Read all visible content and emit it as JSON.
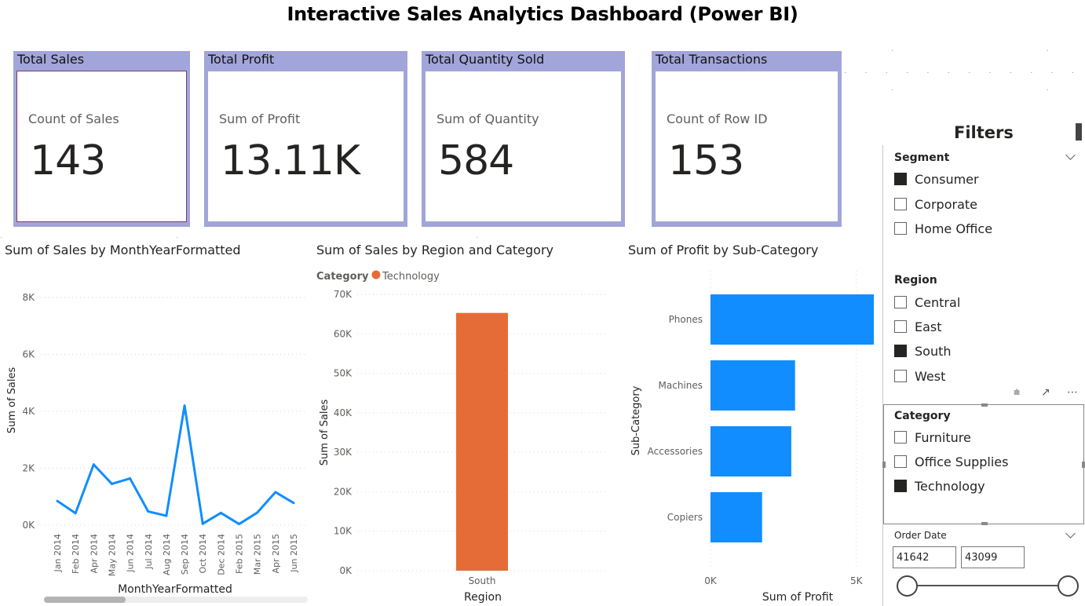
{
  "title": "Interactive Sales Analytics Dashboard (Power BI)",
  "kpis": [
    {
      "title": "Total Sales",
      "label": "Count of Sales",
      "value": "143"
    },
    {
      "title": "Total Profit",
      "label": "Sum of Profit",
      "value": "13.11K"
    },
    {
      "title": "Total Quantity Sold",
      "label": "Sum of Quantity",
      "value": "584"
    },
    {
      "title": "Total Transactions",
      "label": "Count of Row ID",
      "value": "153"
    }
  ],
  "colors": {
    "card_bg": "#a1a5da",
    "line": "#118dff",
    "bar_orange": "#e66c37",
    "bar_blue": "#118dff"
  },
  "chart_data": [
    {
      "type": "line",
      "title": "Sum of Sales by MonthYearFormatted",
      "xlabel": "MonthYearFormatted",
      "ylabel": "Sum of Sales",
      "ylim": [
        0,
        8000
      ],
      "y_ticks": [
        "0K",
        "2K",
        "4K",
        "6K",
        "8K"
      ],
      "categories": [
        "Jan 2014",
        "Feb 2014",
        "Apr 2014",
        "May 2014",
        "Jun 2014",
        "Jul 2014",
        "Aug 2014",
        "Sep 2014",
        "Oct 2014",
        "Dec 2014",
        "Feb 2015",
        "Mar 2015",
        "Apr 2015",
        "Jun 2015"
      ],
      "values": [
        850,
        420,
        2130,
        1450,
        1640,
        480,
        330,
        4200,
        50,
        430,
        40,
        440,
        1160,
        780
      ]
    },
    {
      "type": "bar",
      "title": "Sum of Sales by Region and Category",
      "legend_title": "Category",
      "legend": [
        "Technology"
      ],
      "xlabel": "Region",
      "ylabel": "Sum of Sales",
      "ylim": [
        0,
        70000
      ],
      "y_ticks": [
        "0K",
        "10K",
        "20K",
        "30K",
        "40K",
        "50K",
        "60K",
        "70K"
      ],
      "categories": [
        "South"
      ],
      "values": [
        65300
      ]
    },
    {
      "type": "bar",
      "orientation": "horizontal",
      "title": "Sum of Profit by Sub-Category",
      "xlabel": "Sum of Profit",
      "ylabel": "Sub-Category",
      "xlim": [
        0,
        5600
      ],
      "x_ticks": [
        "0K",
        "5K"
      ],
      "categories": [
        "Phones",
        "Machines",
        "Accessories",
        "Copiers"
      ],
      "values": [
        5600,
        2900,
        2770,
        1770
      ]
    }
  ],
  "filters": {
    "title": "Filters",
    "segment": {
      "title": "Segment",
      "options": [
        {
          "label": "Consumer",
          "checked": true
        },
        {
          "label": "Corporate",
          "checked": false
        },
        {
          "label": "Home Office",
          "checked": false
        }
      ]
    },
    "region": {
      "title": "Region",
      "options": [
        {
          "label": "Central",
          "checked": false
        },
        {
          "label": "East",
          "checked": false
        },
        {
          "label": "South",
          "checked": true
        },
        {
          "label": "West",
          "checked": false
        }
      ]
    },
    "category": {
      "title": "Category",
      "options": [
        {
          "label": "Furniture",
          "checked": false
        },
        {
          "label": "Office Supplies",
          "checked": false
        },
        {
          "label": "Technology",
          "checked": true
        }
      ]
    },
    "order_date": {
      "title": "Order Date",
      "from": "41642",
      "to": "43099"
    }
  }
}
